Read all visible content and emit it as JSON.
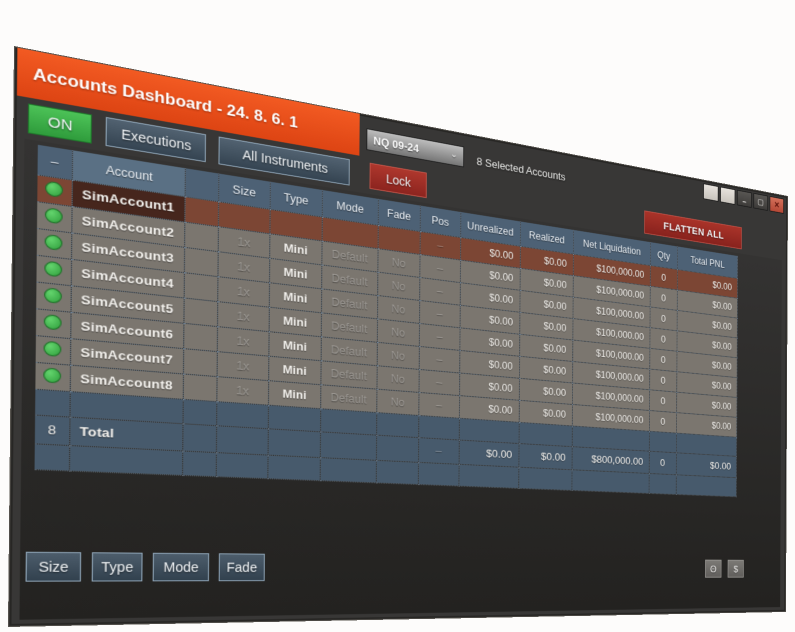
{
  "window": {
    "title": "Accounts Dashboard - 24. 8. 6. 1",
    "instrument_selector": "NQ 09-24",
    "chevron": "▼",
    "selected_accounts_label": "8 Selected Accounts",
    "buttons": {
      "minimize": "–",
      "maximize": "▢",
      "close": "✕"
    }
  },
  "toolbar": {
    "on": "ON",
    "executions": "Executions",
    "all_instruments": "All Instruments",
    "lock": "Lock",
    "flatten_all": "FLATTEN ALL"
  },
  "table": {
    "headers": [
      "–",
      "Account",
      "",
      "Size",
      "Type",
      "Mode",
      "Fade",
      "Pos",
      "Unrealized",
      "Realized",
      "Net Liquidation",
      "Qty",
      "Total PNL"
    ],
    "rows": [
      {
        "account": "SimAccount1",
        "size": "",
        "type": "",
        "mode": "",
        "fade": "",
        "pos": "–",
        "unrealized": "$0.00",
        "realized": "$0.00",
        "net_liquidation": "$100,000.00",
        "qty": "0",
        "total_pnl": "$0.00",
        "selected": true
      },
      {
        "account": "SimAccount2",
        "size": "1x",
        "type": "Mini",
        "mode": "Default",
        "fade": "No",
        "pos": "–",
        "unrealized": "$0.00",
        "realized": "$0.00",
        "net_liquidation": "$100,000.00",
        "qty": "0",
        "total_pnl": "$0.00",
        "selected": false
      },
      {
        "account": "SimAccount3",
        "size": "1x",
        "type": "Mini",
        "mode": "Default",
        "fade": "No",
        "pos": "–",
        "unrealized": "$0.00",
        "realized": "$0.00",
        "net_liquidation": "$100,000.00",
        "qty": "0",
        "total_pnl": "$0.00",
        "selected": false
      },
      {
        "account": "SimAccount4",
        "size": "1x",
        "type": "Mini",
        "mode": "Default",
        "fade": "No",
        "pos": "–",
        "unrealized": "$0.00",
        "realized": "$0.00",
        "net_liquidation": "$100,000.00",
        "qty": "0",
        "total_pnl": "$0.00",
        "selected": false
      },
      {
        "account": "SimAccount5",
        "size": "1x",
        "type": "Mini",
        "mode": "Default",
        "fade": "No",
        "pos": "–",
        "unrealized": "$0.00",
        "realized": "$0.00",
        "net_liquidation": "$100,000.00",
        "qty": "0",
        "total_pnl": "$0.00",
        "selected": false
      },
      {
        "account": "SimAccount6",
        "size": "1x",
        "type": "Mini",
        "mode": "Default",
        "fade": "No",
        "pos": "–",
        "unrealized": "$0.00",
        "realized": "$0.00",
        "net_liquidation": "$100,000.00",
        "qty": "0",
        "total_pnl": "$0.00",
        "selected": false
      },
      {
        "account": "SimAccount7",
        "size": "1x",
        "type": "Mini",
        "mode": "Default",
        "fade": "No",
        "pos": "–",
        "unrealized": "$0.00",
        "realized": "$0.00",
        "net_liquidation": "$100,000.00",
        "qty": "0",
        "total_pnl": "$0.00",
        "selected": false
      },
      {
        "account": "SimAccount8",
        "size": "1x",
        "type": "Mini",
        "mode": "Default",
        "fade": "No",
        "pos": "–",
        "unrealized": "$0.00",
        "realized": "$0.00",
        "net_liquidation": "$100,000.00",
        "qty": "0",
        "total_pnl": "$0.00",
        "selected": false
      }
    ],
    "totals": {
      "count": "8",
      "label": "Total",
      "pos": "–",
      "unrealized": "$0.00",
      "realized": "$0.00",
      "net_liquidation": "$800,000.00",
      "qty": "0",
      "total_pnl": "$0.00"
    }
  },
  "bottom_bar": {
    "size": "Size",
    "type": "Type",
    "mode": "Mode",
    "fade": "Fade",
    "theta": "Θ",
    "dollar": "$"
  },
  "colors": {
    "accent_orange": "#e8501e",
    "on_green": "#41b549",
    "danger_red": "#9b2d27",
    "header_blue": "#4d6175",
    "row_gray": "#7b766f",
    "selected_brown": "#7c4634",
    "footer_blue": "#475a6c"
  }
}
